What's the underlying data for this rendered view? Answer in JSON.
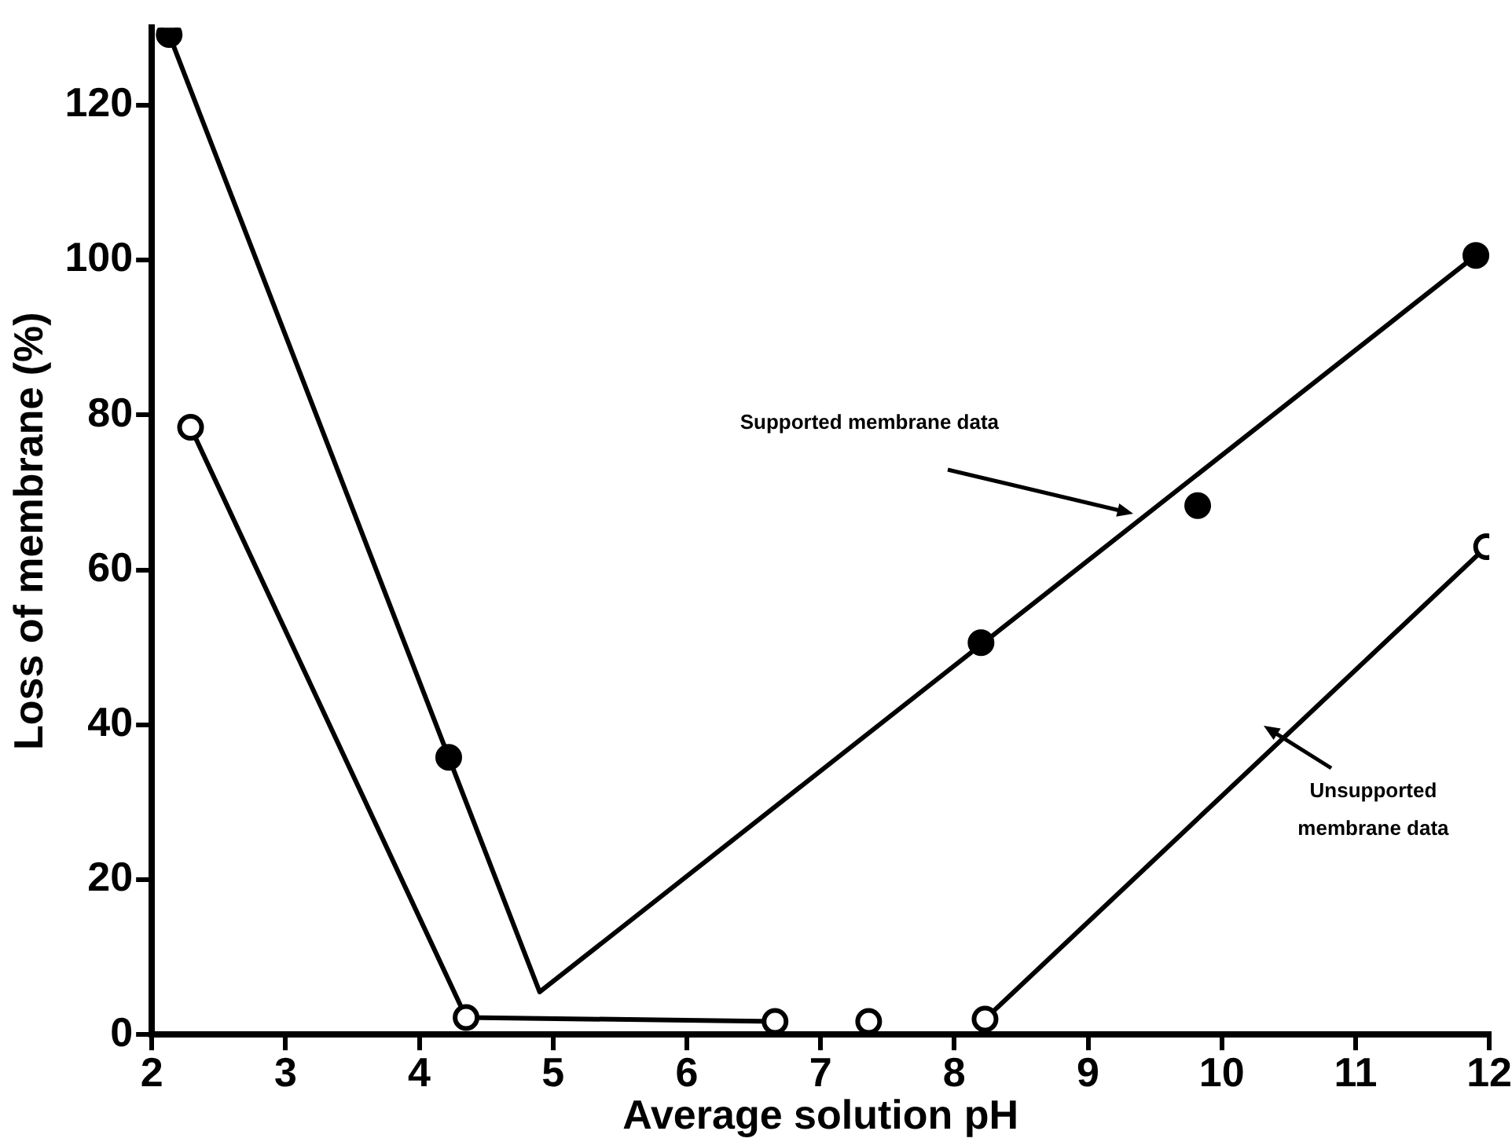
{
  "chart_data": {
    "type": "scatter",
    "xlabel": "Average solution pH",
    "ylabel": "Loss of membrane (%)",
    "xlim": [
      2,
      12
    ],
    "xticks": [
      2,
      3,
      4,
      5,
      6,
      7,
      8,
      9,
      10,
      11,
      12
    ],
    "ylim": [
      0,
      130
    ],
    "yticks": [
      0,
      20,
      40,
      60,
      80,
      100,
      120
    ],
    "grid": false,
    "legend": false,
    "marker": "circle",
    "annotations": [
      "Supported membrane data",
      "Unsupported membrane data"
    ],
    "series": [
      {
        "type": "line",
        "color": "#000000",
        "marker": "none",
        "x": [
          2.13,
          4.22,
          4.9,
          11.9
        ],
        "values": [
          129.1,
          35.8,
          5.5,
          100.6
        ]
      },
      {
        "type": "line",
        "color": "#000000",
        "marker": "none",
        "x": [
          2.29,
          4.35,
          6.66,
          7.5,
          8.23,
          11.98
        ],
        "values": [
          78.4,
          2.2,
          1.7,
          null,
          2.0,
          63
        ]
      },
      {
        "color": "#000000",
        "x": [
          2.13,
          4.22,
          8.2,
          9.82,
          11.9
        ],
        "values": [
          129.1,
          35.8,
          50.6,
          68.3,
          100.6
        ]
      },
      {
        "type": "scatter",
        "color": "#ffffff",
        "x": [
          2.29,
          4.35,
          6.66,
          7.36,
          8.23,
          11.98
        ],
        "values": [
          78.4,
          2.2,
          1.7,
          1.7,
          2.0,
          63
        ]
      }
    ]
  }
}
